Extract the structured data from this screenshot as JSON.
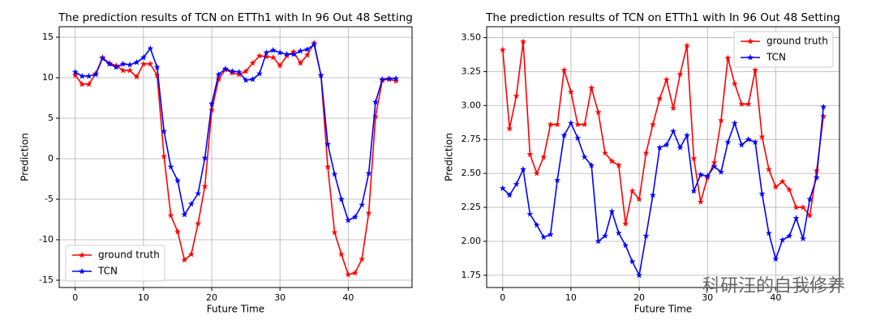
{
  "chart_data": [
    {
      "type": "line",
      "title": "The prediction results of TCN on ETTh1 with In 96 Out 48 Setting",
      "x_label": "Future Time",
      "y_label": "Prediction",
      "x": [
        0,
        1,
        2,
        3,
        4,
        5,
        6,
        7,
        8,
        9,
        10,
        11,
        12,
        13,
        14,
        15,
        16,
        17,
        18,
        19,
        20,
        21,
        22,
        23,
        24,
        25,
        26,
        27,
        28,
        29,
        30,
        31,
        32,
        33,
        34,
        35,
        36,
        37,
        38,
        39,
        40,
        41,
        42,
        43,
        44,
        45,
        46,
        47
      ],
      "series": [
        {
          "name": "ground truth",
          "color": "#ff0000",
          "values": [
            10.3,
            9.2,
            9.2,
            10.5,
            12.5,
            11.8,
            11.5,
            10.9,
            10.9,
            10.1,
            11.7,
            11.7,
            10.3,
            0.3,
            -7,
            -9,
            -12.5,
            -11.8,
            -8,
            -3.4,
            6,
            9.8,
            11,
            10.6,
            10.4,
            10.8,
            11.8,
            12.7,
            12.6,
            12.5,
            11.5,
            12.7,
            13.2,
            11.8,
            12.8,
            14.3,
            10.3,
            -1,
            -9.1,
            -11.8,
            -14.3,
            -14.1,
            -12.4,
            -6.7,
            5.2,
            9.7,
            9.8,
            9.6
          ]
        },
        {
          "name": "TCN",
          "color": "#0000ff",
          "values": [
            10.7,
            10.2,
            10.2,
            10.4,
            12.4,
            11.7,
            11.3,
            11.7,
            11.6,
            11.9,
            12.5,
            13.6,
            11.3,
            3.4,
            -1,
            -2.7,
            -6.9,
            -5.6,
            -4.3,
            0.1,
            6.8,
            10.4,
            11.1,
            10.8,
            10.7,
            9.7,
            9.8,
            10.5,
            13.1,
            13.4,
            13.1,
            12.9,
            12.9,
            13.3,
            13.5,
            14.1,
            10.3,
            1.8,
            -1.9,
            -5,
            -7.6,
            -7.2,
            -5.7,
            -1.8,
            7,
            9.8,
            9.9,
            9.9
          ]
        }
      ],
      "xlim": [
        -2.35,
        49.35
      ],
      "xticks": [
        0,
        10,
        20,
        30,
        40
      ],
      "ylim": [
        -15.9,
        16.3
      ],
      "yticks": [
        -15,
        -10,
        -5,
        0,
        5,
        10,
        15
      ],
      "grid": true,
      "marker": "star",
      "legend": "lower left"
    },
    {
      "type": "line",
      "title": "The prediction results of TCN on ETTh1 with In 96 Out 48 Setting",
      "x_label": "Future Time",
      "y_label": "Prediction",
      "x": [
        0,
        1,
        2,
        3,
        4,
        5,
        6,
        7,
        8,
        9,
        10,
        11,
        12,
        13,
        14,
        15,
        16,
        17,
        18,
        19,
        20,
        21,
        22,
        23,
        24,
        25,
        26,
        27,
        28,
        29,
        30,
        31,
        32,
        33,
        34,
        35,
        36,
        37,
        38,
        39,
        40,
        41,
        42,
        43,
        44,
        45,
        46,
        47
      ],
      "series": [
        {
          "name": "ground truth",
          "color": "#ff0000",
          "values": [
            3.41,
            2.83,
            3.07,
            3.47,
            2.64,
            2.5,
            2.62,
            2.86,
            2.86,
            3.26,
            3.1,
            2.86,
            2.86,
            3.13,
            2.95,
            2.65,
            2.59,
            2.56,
            2.13,
            2.37,
            2.31,
            2.65,
            2.86,
            3.05,
            3.19,
            2.98,
            3.23,
            3.44,
            2.61,
            2.29,
            2.47,
            2.58,
            2.89,
            3.35,
            3.16,
            3.01,
            3.01,
            3.26,
            2.77,
            2.53,
            2.4,
            2.44,
            2.38,
            2.25,
            2.25,
            2.19,
            2.52,
            2.92
          ]
        },
        {
          "name": "TCN",
          "color": "#0000ff",
          "values": [
            2.39,
            2.34,
            2.42,
            2.53,
            2.2,
            2.12,
            2.03,
            2.05,
            2.45,
            2.78,
            2.87,
            2.76,
            2.62,
            2.56,
            2,
            2.04,
            2.22,
            2.06,
            1.97,
            1.85,
            1.75,
            2.04,
            2.34,
            2.69,
            2.71,
            2.81,
            2.69,
            2.78,
            2.37,
            2.49,
            2.48,
            2.55,
            2.51,
            2.73,
            2.87,
            2.71,
            2.75,
            2.73,
            2.35,
            2.06,
            1.87,
            2.01,
            2.04,
            2.17,
            2.02,
            2.31,
            2.47,
            2.99
          ]
        }
      ],
      "xlim": [
        -2.35,
        49.35
      ],
      "xticks": [
        0,
        10,
        20,
        30,
        40
      ],
      "ylim": [
        1.66,
        3.58
      ],
      "yticks": [
        1.75,
        {
          "value": 2,
          "label": "2.00"
        },
        2.25,
        {
          "value": 2.5,
          "label": "2.50"
        },
        2.75,
        {
          "value": 3,
          "label": "3.00"
        },
        3.25,
        {
          "value": 3.5,
          "label": "3.50"
        }
      ],
      "grid": true,
      "marker": "star",
      "legend": "upper right"
    }
  ],
  "watermark": "科研汪的自我修养"
}
